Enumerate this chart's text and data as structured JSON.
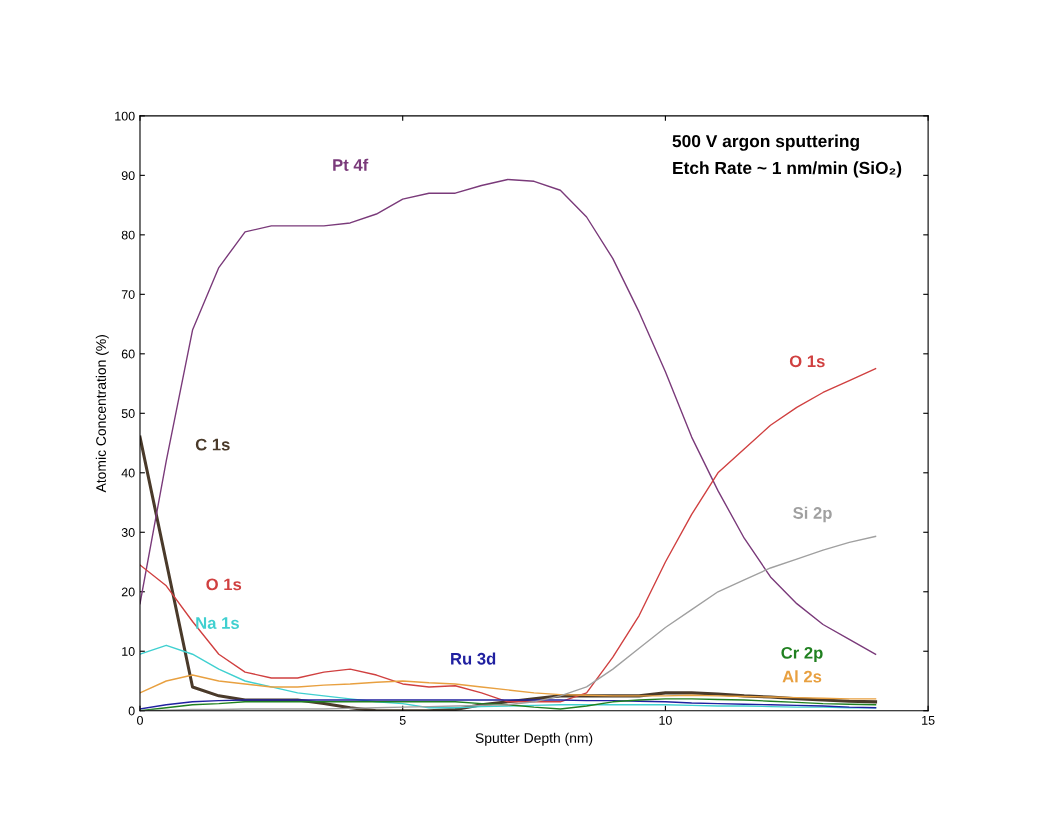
{
  "chart_data": {
    "type": "line",
    "xlabel": "Sputter Depth (nm)",
    "ylabel": "Atomic Concentration (%)",
    "x": [
      0,
      0.5,
      1,
      1.5,
      2,
      2.5,
      3,
      3.5,
      4,
      4.5,
      5,
      5.5,
      6,
      6.5,
      7,
      7.5,
      8,
      8.5,
      9,
      9.5,
      10,
      10.5,
      11,
      11.5,
      12,
      12.5,
      13,
      13.5,
      14
    ],
    "series": [
      {
        "name": "Pt 4f",
        "color": "#7a3a7a",
        "values": [
          18,
          42,
          64,
          74.5,
          80.5,
          81.5,
          81.5,
          81.5,
          82,
          83.5,
          86,
          87,
          87,
          88.3,
          89.3,
          89,
          87.5,
          83,
          76,
          67,
          57,
          46,
          37,
          29,
          22.5,
          18,
          14.5,
          12,
          9.5
        ]
      },
      {
        "name": "O 1s",
        "color": "#d04040",
        "values": [
          24.5,
          21,
          15,
          9.5,
          6.5,
          5.5,
          5.5,
          6.5,
          7,
          6,
          4.5,
          4,
          4.2,
          3,
          1.5,
          1.5,
          1.5,
          3,
          9,
          16,
          25,
          33,
          40,
          44,
          48,
          51,
          53.5,
          55.5,
          57.5
        ]
      },
      {
        "name": "C 1s",
        "color": "#4a3a2a",
        "values": [
          46,
          25,
          4,
          2.5,
          1.8,
          1.8,
          1.8,
          1.2,
          0.5,
          0,
          0,
          0,
          0.2,
          1,
          1.5,
          2,
          2.5,
          2.5,
          2.5,
          2.5,
          3,
          3,
          2.8,
          2.5,
          2.3,
          2,
          1.8,
          1.6,
          1.5
        ]
      },
      {
        "name": "Na 1s",
        "color": "#40d0d0",
        "values": [
          9.5,
          11,
          9.5,
          7,
          5,
          4,
          3,
          2.5,
          2,
          1.5,
          1.2,
          0.5,
          0.5,
          0.7,
          0.8,
          0.9,
          1,
          1,
          1,
          1,
          1,
          0.9,
          0.8,
          0.8,
          0.7,
          0.6,
          0.6,
          0.5,
          0.5
        ]
      },
      {
        "name": "Ru 3d",
        "color": "#2020a0",
        "values": [
          0.3,
          1,
          1.5,
          1.7,
          1.8,
          1.8,
          1.8,
          1.8,
          1.8,
          1.8,
          1.8,
          1.8,
          1.8,
          1.8,
          1.8,
          1.8,
          1.8,
          1.7,
          1.7,
          1.6,
          1.5,
          1.3,
          1.2,
          1.1,
          1,
          0.9,
          0.8,
          0.6,
          0.5
        ]
      },
      {
        "name": "Cr 2p",
        "color": "#208020",
        "values": [
          0,
          0.5,
          1,
          1.2,
          1.5,
          1.5,
          1.5,
          1.5,
          1.5,
          1.5,
          1.5,
          1.5,
          1.5,
          1.2,
          1,
          0.6,
          0.3,
          0.8,
          1.5,
          1.8,
          2,
          2,
          1.9,
          1.8,
          1.6,
          1.4,
          1.2,
          1.1,
          1
        ]
      },
      {
        "name": "Al 2s",
        "color": "#e8a040",
        "values": [
          3,
          5,
          6,
          5,
          4.5,
          4,
          4,
          4.3,
          4.5,
          4.8,
          5,
          4.7,
          4.5,
          4,
          3.5,
          3,
          2.7,
          2.6,
          2.5,
          2.5,
          2.5,
          2.6,
          2.5,
          2.4,
          2.3,
          2.2,
          2.1,
          2,
          2
        ]
      },
      {
        "name": "Si 2p",
        "color": "#a0a0a0",
        "values": [
          0,
          0.1,
          0.2,
          0.2,
          0.3,
          0.3,
          0.3,
          0.3,
          0.4,
          0.5,
          0.6,
          0.7,
          0.8,
          0.9,
          1,
          1.5,
          2.5,
          4,
          7,
          10.5,
          14,
          17,
          20,
          22,
          24,
          25.5,
          27,
          28.3,
          29.3
        ]
      }
    ],
    "xlim": [
      0,
      15
    ],
    "xticks": [
      0,
      5,
      10,
      15
    ],
    "ylim": [
      0,
      100
    ],
    "yticks": [
      0,
      10,
      20,
      30,
      40,
      50,
      60,
      70,
      80,
      90,
      100
    ],
    "annotations": [
      "500 V argon sputtering",
      "Etch Rate ~ 1 nm/min (SiO₂)"
    ],
    "grid": false,
    "legend": false,
    "marker": "none",
    "line_style": "solid"
  }
}
